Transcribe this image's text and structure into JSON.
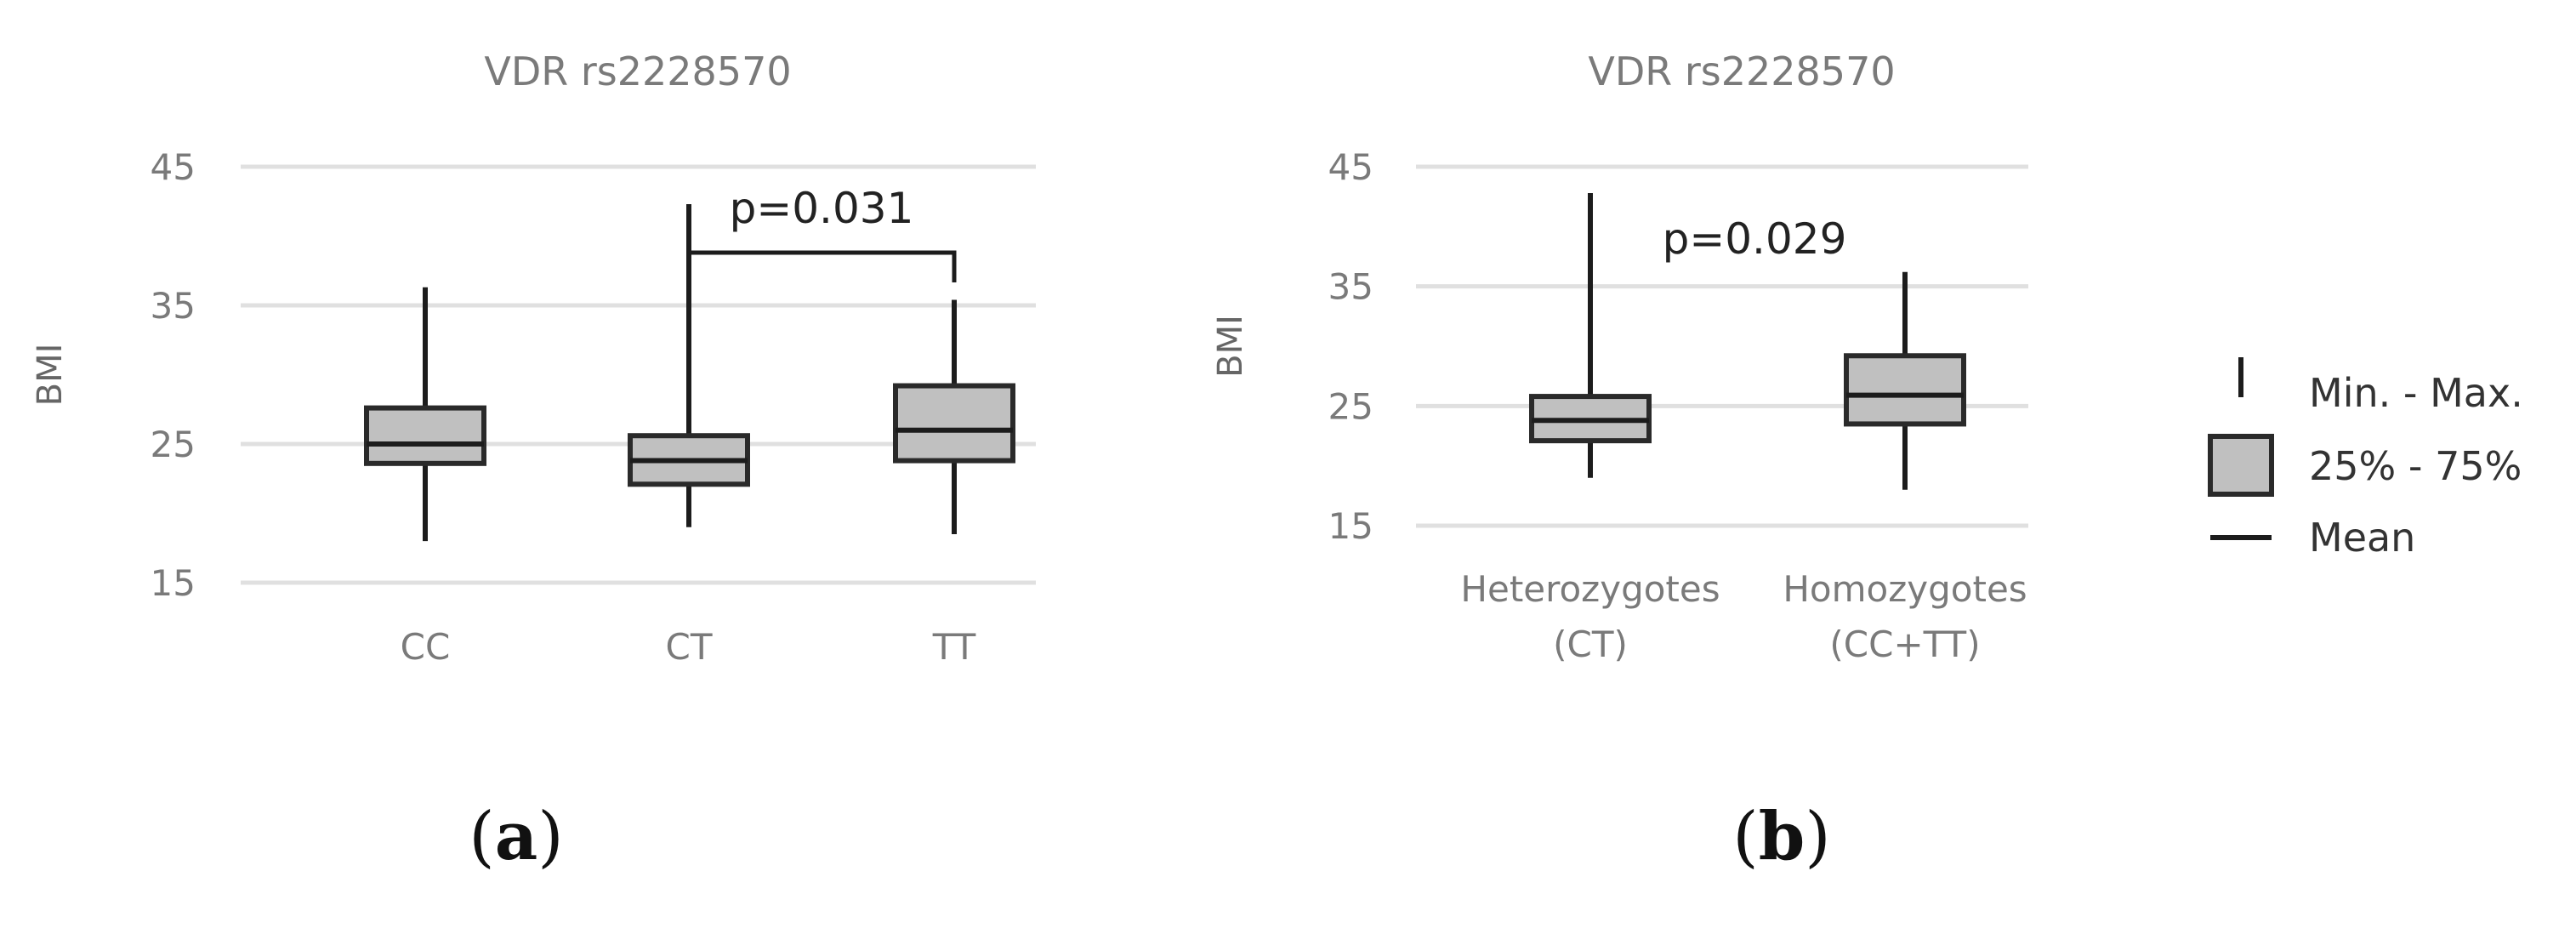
{
  "chart_data": [
    {
      "type": "box",
      "panel": "a",
      "title": "VDR rs2228570",
      "ylabel": "BMI",
      "xlabel": "",
      "ylim": [
        15,
        45
      ],
      "yticks": [
        15,
        25,
        35,
        45
      ],
      "grid": true,
      "categories": [
        [
          "CC"
        ],
        [
          "CT"
        ],
        [
          "TT"
        ]
      ],
      "series": [
        {
          "category": "CC",
          "min": 18.0,
          "q1": 23.6,
          "mean": 25.0,
          "q3": 27.6,
          "max": 36.3
        },
        {
          "category": "CT",
          "min": 19.0,
          "q1": 22.1,
          "mean": 23.8,
          "q3": 25.6,
          "max": 42.3
        },
        {
          "category": "TT",
          "min": 18.5,
          "q1": 23.8,
          "mean": 26.0,
          "q3": 29.2,
          "max": 35.4
        }
      ],
      "annotations": [
        {
          "text": "p=0.031",
          "from": 1,
          "to": 2
        }
      ]
    },
    {
      "type": "box",
      "panel": "b",
      "title": "VDR rs2228570",
      "ylabel": "BMI",
      "xlabel": "",
      "ylim": [
        15,
        45
      ],
      "yticks": [
        15,
        25,
        35,
        45
      ],
      "grid": true,
      "categories": [
        [
          "Heterozygotes",
          "(CT)"
        ],
        [
          "Homozygotes",
          "(CC+TT)"
        ]
      ],
      "series": [
        {
          "category": "Heterozygotes (CT)",
          "min": 19.0,
          "q1": 22.1,
          "mean": 23.8,
          "q3": 25.8,
          "max": 42.8
        },
        {
          "category": "Homozygotes (CC+TT)",
          "min": 18.0,
          "q1": 23.5,
          "mean": 25.9,
          "q3": 29.2,
          "max": 36.2
        }
      ],
      "annotations": [
        {
          "text": "p=0.029"
        }
      ]
    }
  ],
  "legend": {
    "position": "right",
    "items": [
      {
        "symbol": "whisker",
        "label": "Min. - Max."
      },
      {
        "symbol": "box",
        "label": "25% - 75%"
      },
      {
        "symbol": "line",
        "label": "Mean"
      }
    ]
  },
  "panel_labels": [
    "a",
    "b"
  ]
}
